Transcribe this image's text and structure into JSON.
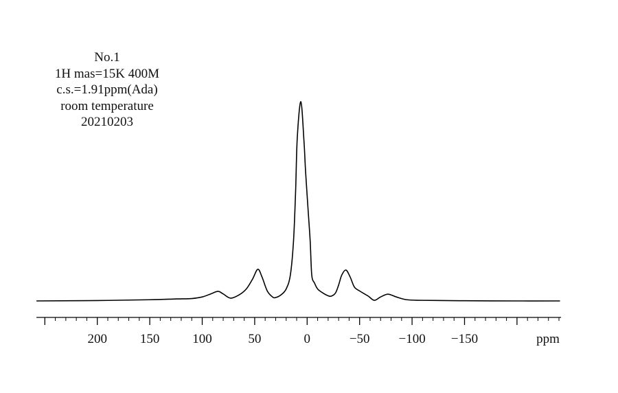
{
  "chart_data": {
    "type": "line",
    "annotation_lines": [
      "No.1",
      "1H mas=15K 400M",
      "c.s.=1.91ppm(Ada)",
      "room temperature",
      "20210203"
    ],
    "xlabel": "ppm",
    "ylabel": "",
    "x_reversed": true,
    "xlim": [
      258,
      -242
    ],
    "x_ticks_major": [
      250,
      200,
      150,
      100,
      50,
      0,
      -50,
      -100,
      -150,
      -200
    ],
    "x_tick_labels": [
      {
        "value": 200,
        "label": "200"
      },
      {
        "value": 150,
        "label": "150"
      },
      {
        "value": 100,
        "label": "100"
      },
      {
        "value": 50,
        "label": "50"
      },
      {
        "value": 0,
        "label": "0"
      },
      {
        "value": -50,
        "label": "−50"
      },
      {
        "value": -100,
        "label": "−100"
      },
      {
        "value": -150,
        "label": "−150"
      }
    ],
    "x_minor_step": 10,
    "y_axis_shown": false,
    "grid": false,
    "line_color": "#000000",
    "series": [
      {
        "x": [
          258,
          200,
          150,
          125,
          110,
          100,
          92,
          85,
          80,
          73,
          65,
          58,
          52,
          47,
          43,
          38,
          33,
          30,
          25,
          20,
          16,
          13,
          11,
          9.4,
          6,
          3,
          1.5,
          -1,
          -2.9,
          -4.4,
          -7,
          -10,
          -15,
          -20,
          -23,
          -27,
          -30,
          -33,
          -37,
          -41,
          -45,
          -50,
          -58,
          -64,
          -70,
          -77,
          -85,
          -95,
          -110,
          -150,
          -200,
          -241
        ],
        "y": [
          0,
          0.2,
          0.6,
          1.0,
          1.2,
          2,
          3.5,
          4.8,
          3.5,
          1.4,
          3,
          6,
          11,
          15.9,
          12,
          5,
          2,
          1.7,
          3,
          6,
          13,
          30,
          55,
          82,
          100,
          80,
          65,
          45,
          30,
          13,
          9,
          6,
          4,
          2.6,
          2.4,
          4,
          8,
          13,
          15.5,
          12,
          7,
          5,
          2.5,
          0.3,
          2,
          3.4,
          2,
          0.6,
          0.3,
          0.1,
          0,
          0
        ]
      }
    ]
  }
}
